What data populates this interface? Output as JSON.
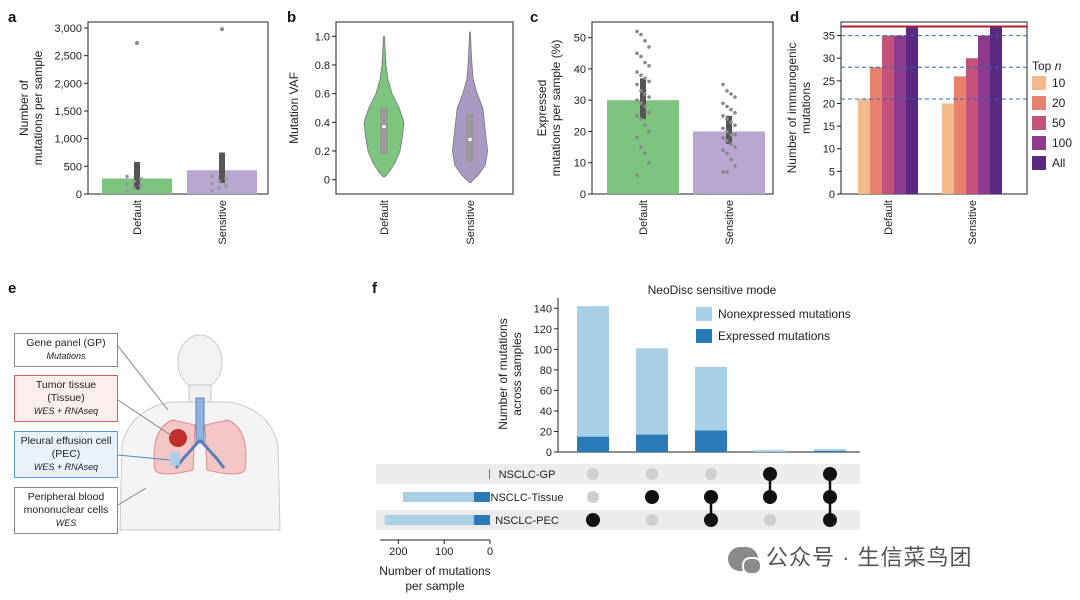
{
  "chart_data": [
    {
      "panel": "a",
      "type": "bar",
      "categories": [
        "Default",
        "Sensitive"
      ],
      "values": [
        280,
        430
      ],
      "error_ranges": [
        [
          80,
          580
        ],
        [
          200,
          750
        ]
      ],
      "outliers": [
        2730,
        2980
      ],
      "ylabel": "Number of mutations per sample",
      "ylim": [
        0,
        3000
      ],
      "yticks": [
        "0",
        "500",
        "1,000",
        "1,500",
        "2,000",
        "2,500",
        "3,000"
      ],
      "colors": [
        "#7dc47f",
        "#b9a6d1"
      ]
    },
    {
      "panel": "b",
      "type": "violin",
      "categories": [
        "Default",
        "Sensitive"
      ],
      "medians": [
        0.37,
        0.28
      ],
      "quartiles": [
        [
          0.18,
          0.5
        ],
        [
          0.12,
          0.46
        ]
      ],
      "ylabel": "Mutation VAF",
      "ylim": [
        -0.1,
        1.1
      ],
      "yticks": [
        "0",
        "0.2",
        "0.4",
        "0.6",
        "0.8",
        "1.0"
      ],
      "colors": [
        "#7dc47f",
        "#a99ac4"
      ]
    },
    {
      "panel": "c",
      "type": "bar",
      "categories": [
        "Default",
        "Sensitive"
      ],
      "values": [
        30,
        20
      ],
      "error_ranges": [
        [
          24,
          37
        ],
        [
          16,
          25
        ]
      ],
      "points": [
        [
          52,
          51,
          49,
          47,
          45,
          44,
          42,
          41,
          39,
          38,
          37,
          36,
          35,
          33,
          32,
          31,
          30,
          29,
          28,
          26,
          25,
          24,
          22,
          20,
          18,
          15,
          13,
          10,
          6
        ],
        [
          35,
          33,
          32,
          31,
          29,
          28,
          27,
          26,
          25,
          24,
          23,
          22,
          21,
          20,
          19,
          19,
          18,
          17,
          16,
          15,
          14,
          13,
          11,
          9,
          7,
          7
        ]
      ],
      "ylabel": "Expressed mutations per sample (%)",
      "ylim": [
        0,
        55
      ],
      "yticks": [
        "0",
        "10",
        "20",
        "30",
        "40",
        "50"
      ],
      "colors": [
        "#7dc47f",
        "#b9a6d1"
      ]
    },
    {
      "panel": "d",
      "type": "bar",
      "categories": [
        "Default",
        "Sensitive"
      ],
      "series": [
        {
          "name": "10",
          "values": [
            21,
            20
          ]
        },
        {
          "name": "20",
          "values": [
            28,
            26
          ]
        },
        {
          "name": "50",
          "values": [
            35,
            30
          ]
        },
        {
          "name": "100",
          "values": [
            35,
            35
          ]
        },
        {
          "name": "All",
          "values": [
            37,
            37
          ]
        }
      ],
      "reference_lines": [
        35,
        28,
        21
      ],
      "top_line": 37,
      "legend_title": "Top n",
      "ylabel": "Number of immunogenic mutations",
      "ylim": [
        0,
        38
      ],
      "yticks": [
        "0",
        "5",
        "10",
        "15",
        "20",
        "25",
        "30",
        "35"
      ],
      "colors": [
        "#f2b98a",
        "#e8806b",
        "#c5527a",
        "#8d3a8f",
        "#5a2a82"
      ]
    },
    {
      "panel": "f",
      "type": "upset",
      "title": "NeoDisc sensitive mode",
      "series": [
        {
          "name": "Nonexpressed mutations",
          "values": [
            127,
            84,
            62,
            2,
            2
          ]
        },
        {
          "name": "Expressed mutations",
          "values": [
            15,
            17,
            21,
            0,
            1
          ]
        }
      ],
      "totals": [
        142,
        101,
        83,
        2,
        3
      ],
      "ylabel": "Number of mutations across samples",
      "ylim": [
        0,
        150
      ],
      "yticks": [
        "0",
        "20",
        "40",
        "60",
        "80",
        "100",
        "120",
        "140"
      ],
      "sets": [
        "NSCLC-GP",
        "NSCLC-Tissue",
        "NSCLC-PEC"
      ],
      "set_colors": [
        "#777777",
        "#b03a3a",
        "#2a3a8f"
      ],
      "set_sizes_nonexpressed": [
        0,
        155,
        195
      ],
      "set_sizes_expressed": [
        2,
        35,
        35
      ],
      "set_size_label": "Number of mutations per sample",
      "set_size_ticks": [
        "200",
        "100",
        "0"
      ],
      "set_size_xlim": [
        0,
        240
      ],
      "membership": [
        [
          2
        ],
        [
          1
        ],
        [
          1,
          2
        ],
        [
          0,
          1
        ],
        [
          0,
          1,
          2
        ]
      ],
      "colors": [
        "#a8d1e6",
        "#2a7ab8"
      ]
    }
  ],
  "panel_letters": [
    "a",
    "b",
    "c",
    "d",
    "e",
    "f"
  ],
  "panel_e": {
    "gene_panel": "Gene panel (GP)",
    "gene_panel_sub": "Mutations",
    "tumor": "Tumor tissue (Tissue)",
    "tumor_sub": "WES + RNAseq",
    "pleural": "Pleural effusion cell (PEC)",
    "pleural_sub": "WES + RNAseq",
    "blood": "Peripheral blood mononuclear cells",
    "blood_sub": "WES"
  },
  "watermark": "公众号 · 生信菜鸟团"
}
